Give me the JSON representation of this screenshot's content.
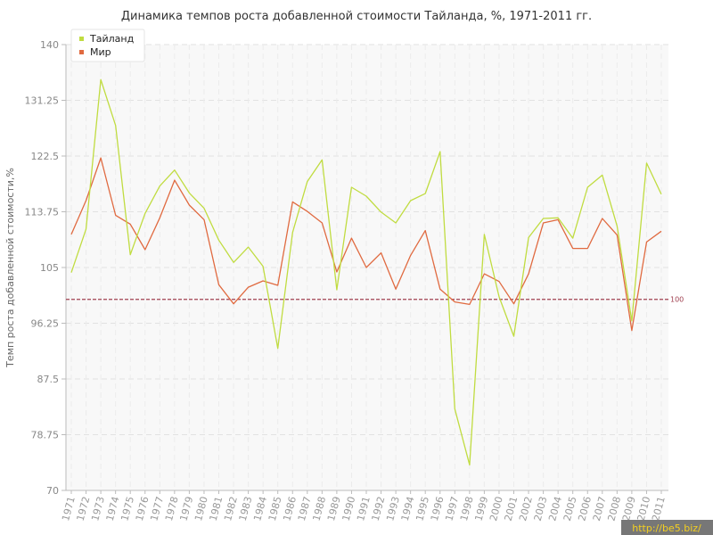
{
  "chart_data": {
    "type": "line",
    "title": "Динамика темпов роста добавленной стоимости Тайланда, %, 1971-2011 гг.",
    "xlabel": "",
    "ylabel": "Темп роста добавленной стоимости,%",
    "ylim": [
      70,
      140
    ],
    "yticks": [
      "70",
      "78.75",
      "87.5",
      "96.25",
      "105",
      "113.75",
      "122.5",
      "131.25",
      "140"
    ],
    "categories": [
      "1971",
      "1972",
      "1973",
      "1974",
      "1975",
      "1976",
      "1977",
      "1978",
      "1979",
      "1980",
      "1981",
      "1982",
      "1983",
      "1984",
      "1985",
      "1986",
      "1987",
      "1988",
      "1989",
      "1990",
      "1991",
      "1992",
      "1993",
      "1994",
      "1995",
      "1996",
      "1997",
      "1998",
      "1999",
      "2000",
      "2001",
      "2002",
      "2003",
      "2004",
      "2005",
      "2006",
      "2007",
      "2008",
      "2009",
      "2010",
      "2011"
    ],
    "series": [
      {
        "name": "Тайланд",
        "color": "#c0dc40",
        "values": [
          104.2,
          111,
          134.5,
          127.3,
          107,
          113.5,
          117.8,
          120.3,
          116.7,
          114.3,
          109.3,
          105.8,
          108.2,
          105.2,
          92.3,
          110.5,
          118.5,
          121.9,
          101.5,
          117.6,
          116.2,
          113.7,
          112,
          115.5,
          116.6,
          123.2,
          82.8,
          74,
          110.2,
          100.4,
          94.2,
          109.7,
          112.7,
          112.8,
          109.6,
          117.6,
          119.5,
          111.5,
          96.6,
          121.4,
          116.5
        ]
      },
      {
        "name": "Мир",
        "color": "#e06a40",
        "values": [
          110.2,
          115.5,
          122.2,
          113.2,
          111.8,
          107.8,
          112.8,
          118.7,
          114.8,
          112.5,
          102.3,
          99.3,
          101.9,
          102.9,
          102.2,
          115.3,
          113.8,
          112,
          104.3,
          109.6,
          105,
          107.3,
          101.6,
          106.9,
          110.8,
          101.6,
          99.6,
          99.2,
          104,
          102.8,
          99.3,
          104,
          112,
          112.5,
          108,
          108,
          112.7,
          110.1,
          95.1,
          109,
          110.7
        ]
      }
    ],
    "reference_line": {
      "value": 100,
      "label": "100",
      "color": "#a04050"
    },
    "legend_position": "top-left",
    "grid": true
  },
  "watermark": "http://be5.biz/"
}
